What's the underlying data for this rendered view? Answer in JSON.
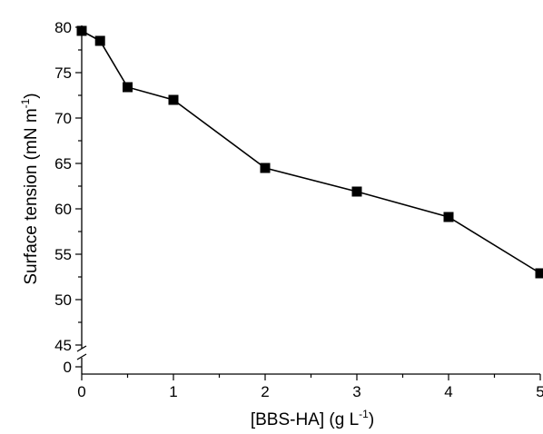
{
  "chart_data": {
    "type": "line",
    "title": "",
    "xlabel": "[BBS-HA] (g L",
    "xlabel_sup": "-1",
    "xlabel_end": ")",
    "ylabel": "Surface tension (mN m",
    "ylabel_sup": "-1",
    "ylabel_end": ")",
    "x": [
      0,
      0.2,
      0.5,
      1,
      2,
      3,
      4,
      5
    ],
    "series": [
      {
        "values": [
          79.6,
          78.5,
          73.4,
          72.0,
          64.5,
          61.9,
          59.1,
          52.9
        ]
      }
    ],
    "xlim": [
      0,
      5
    ],
    "ylim": [
      45,
      80
    ],
    "y_axis_break": true,
    "y_break_lower_tick": "0",
    "xticks": [
      "0",
      "1",
      "2",
      "3",
      "4",
      "5"
    ],
    "yticks": [
      "45",
      "50",
      "55",
      "60",
      "65",
      "70",
      "75",
      "80"
    ],
    "grid": false,
    "marker": "square",
    "colors": {
      "series": "#000000"
    }
  }
}
